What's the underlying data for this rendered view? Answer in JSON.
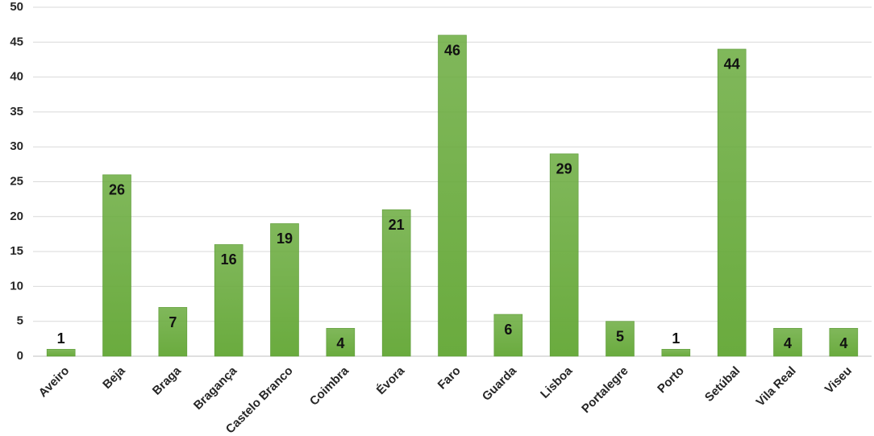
{
  "chart_data": {
    "type": "bar",
    "categories": [
      "Aveiro",
      "Beja",
      "Braga",
      "Bragança",
      "Castelo Branco",
      "Coimbra",
      "Évora",
      "Faro",
      "Guarda",
      "Lisboa",
      "Portalegre",
      "Porto",
      "Setúbal",
      "Vila Real",
      "Viseu"
    ],
    "values": [
      1,
      26,
      7,
      16,
      19,
      4,
      21,
      46,
      6,
      29,
      5,
      1,
      44,
      4,
      4
    ],
    "color": "#6aab3e",
    "ylim": [
      0,
      50
    ],
    "yticks": [
      0,
      5,
      10,
      15,
      20,
      25,
      30,
      35,
      40,
      45,
      50
    ],
    "grid": true
  }
}
